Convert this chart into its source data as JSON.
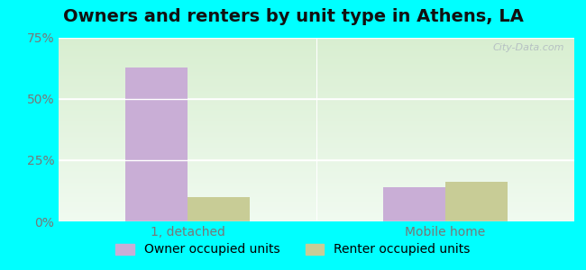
{
  "title": "Owners and renters by unit type in Athens, LA",
  "categories": [
    "1, detached",
    "Mobile home"
  ],
  "owner_values": [
    63.0,
    14.0
  ],
  "renter_values": [
    10.0,
    16.0
  ],
  "owner_color": "#c9aed6",
  "renter_color": "#c8cc96",
  "ylim": [
    0,
    75
  ],
  "yticks": [
    0,
    25,
    50,
    75
  ],
  "yticklabels": [
    "0%",
    "25%",
    "50%",
    "75%"
  ],
  "bar_width": 0.12,
  "group_centers": [
    0.25,
    0.75
  ],
  "xlim": [
    0,
    1
  ],
  "bg_top_color": "#dff0d8",
  "bg_bottom_color": "#f0faf0",
  "outer_bg": "#00ffff",
  "title_fontsize": 14,
  "legend_fontsize": 10,
  "tick_fontsize": 10,
  "watermark": "City-Data.com",
  "grid_color": "#ffffff",
  "tick_color": "#777777"
}
